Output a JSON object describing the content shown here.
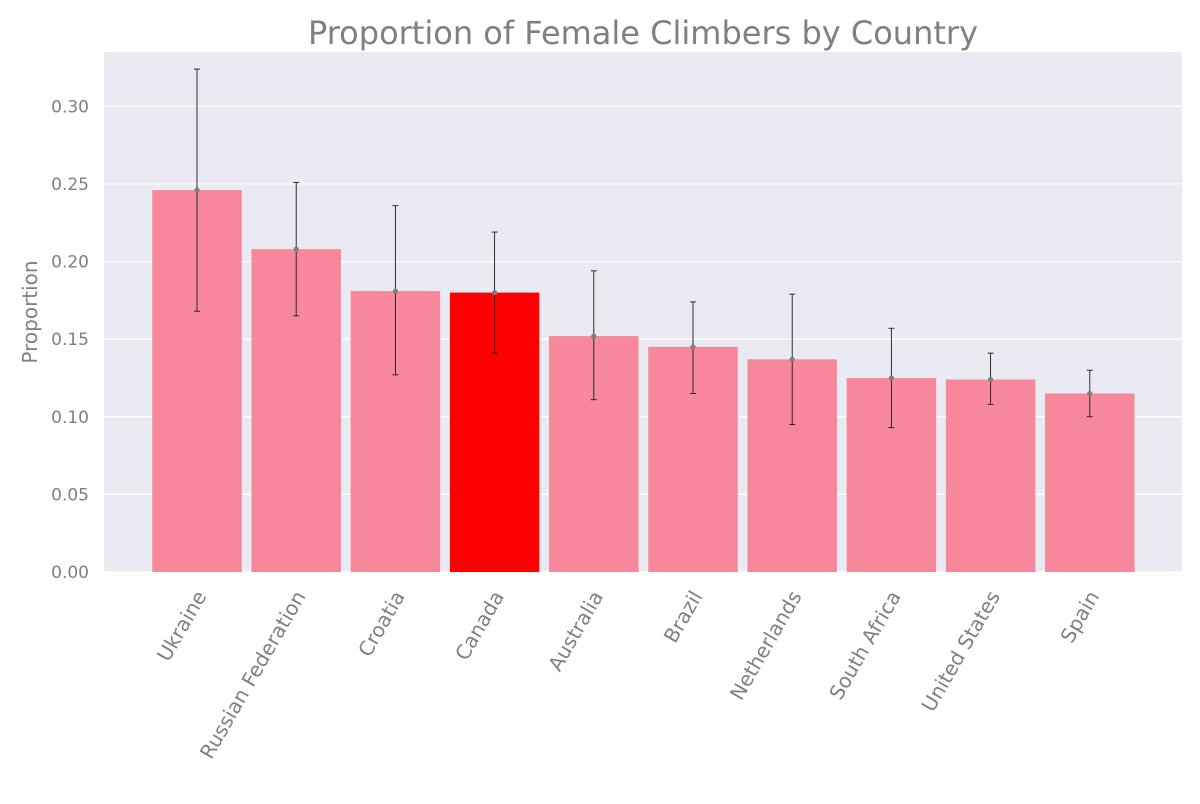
{
  "chart_data": {
    "type": "bar",
    "title": "Proportion of Female Climbers by Country",
    "xlabel": "",
    "ylabel": "Proportion",
    "ylim": [
      0,
      0.335
    ],
    "yticks": [
      0.0,
      0.05,
      0.1,
      0.15,
      0.2,
      0.25,
      0.3
    ],
    "ytick_labels": [
      "0.00",
      "0.05",
      "0.10",
      "0.15",
      "0.20",
      "0.25",
      "0.30"
    ],
    "grid": true,
    "categories": [
      "Ukraine",
      "Russian Federation",
      "Croatia",
      "Canada",
      "Australia",
      "Brazil",
      "Netherlands",
      "South Africa",
      "United States",
      "Spain"
    ],
    "values": [
      0.246,
      0.208,
      0.181,
      0.18,
      0.152,
      0.145,
      0.137,
      0.125,
      0.124,
      0.115
    ],
    "error_low": [
      0.168,
      0.165,
      0.127,
      0.141,
      0.111,
      0.115,
      0.095,
      0.093,
      0.108,
      0.1
    ],
    "error_high": [
      0.324,
      0.251,
      0.236,
      0.219,
      0.194,
      0.174,
      0.179,
      0.157,
      0.141,
      0.13
    ],
    "highlight_category": "Canada",
    "colors": {
      "bar": "#f7889b",
      "highlight": "#ff0000",
      "background": "#eaeaf2",
      "grid": "#ffffff",
      "errorbar": "#1a1a1a",
      "marker": "#7f7f7f",
      "text": "#808080"
    }
  }
}
